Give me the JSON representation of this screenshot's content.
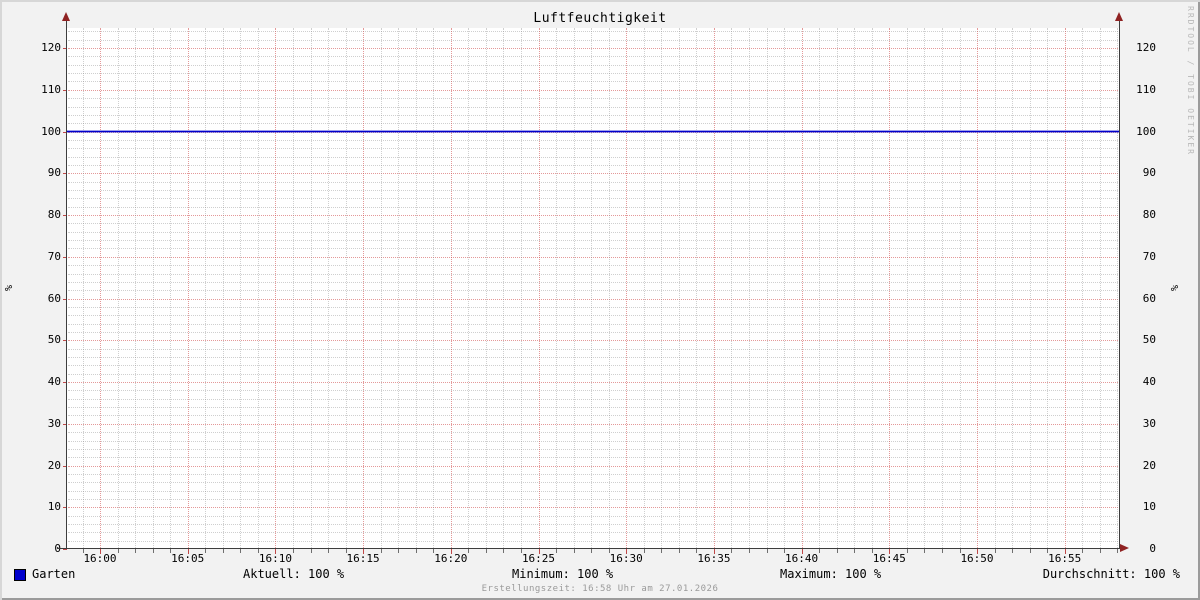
{
  "title": "Luftfeuchtigkeit",
  "watermark": "RRDTOOL / TOBI OETIKER",
  "axis_unit_left": "%",
  "axis_unit_right": "%",
  "legend": {
    "series_label": "Garten",
    "series_color": "#0000cc"
  },
  "stats": {
    "aktuell": "Aktuell: 100 %",
    "minimum": "Minimum: 100 %",
    "maximum": "Maximum: 100 %",
    "durchschnitt": "Durchschnitt: 100 %"
  },
  "footer": "Erstellungszeit: 16:58 Uhr am 27.01.2026",
  "colors": {
    "series": "#0000cc",
    "major_grid": "#cd4646",
    "minor_grid": "#828282",
    "axis": "#3d3d3d",
    "arrow": "#8f2222",
    "background": "#f2f2f2",
    "canvas": "#ffffff"
  },
  "chart_data": {
    "type": "line",
    "title": "Luftfeuchtigkeit",
    "xlabel": "",
    "ylabel": "%",
    "x": [
      "16:00",
      "16:05",
      "16:10",
      "16:15",
      "16:20",
      "16:25",
      "16:30",
      "16:35",
      "16:40",
      "16:45",
      "16:50",
      "16:55"
    ],
    "x_step_minutes": 5,
    "y_ticks": [
      0,
      10,
      20,
      30,
      40,
      50,
      60,
      70,
      80,
      90,
      100,
      110,
      120
    ],
    "y_minor_step": 2,
    "ylim": [
      0,
      124.8
    ],
    "grid": true,
    "legend_position": "bottom-left",
    "series": [
      {
        "name": "Garten",
        "color": "#0000cc",
        "values": [
          100,
          100,
          100,
          100,
          100,
          100,
          100,
          100,
          100,
          100,
          100,
          100
        ],
        "aktuell": 100,
        "minimum": 100,
        "maximum": 100,
        "durchschnitt": 100,
        "unit": "%"
      }
    ]
  }
}
